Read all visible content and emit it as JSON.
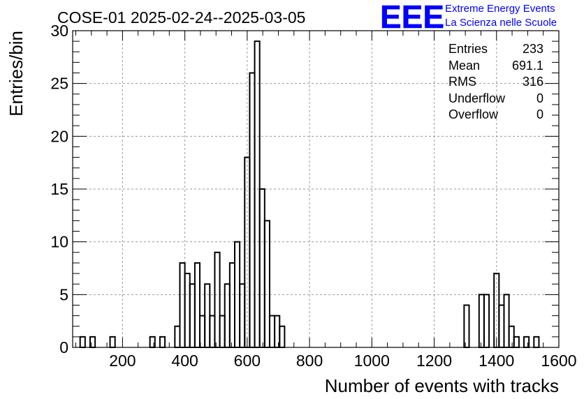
{
  "chart_data": {
    "type": "histogram",
    "title": "COSE-01 2025-02-24--2025-03-05",
    "xlabel": "Number of events with tracks",
    "ylabel": "Entries/bin",
    "xlim": [
      0,
      1600
    ],
    "ylim": [
      0,
      30
    ],
    "xticks": [
      "200",
      "400",
      "600",
      "800",
      "1000",
      "1200",
      "1400",
      "1600"
    ],
    "yticks": [
      "0",
      "5",
      "10",
      "15",
      "20",
      "25",
      "30"
    ],
    "grid": true,
    "bin_width": 16,
    "bins": [
      [
        64,
        1
      ],
      [
        96,
        1
      ],
      [
        160,
        1
      ],
      [
        288,
        1
      ],
      [
        320,
        1
      ],
      [
        368,
        2
      ],
      [
        384,
        8
      ],
      [
        400,
        7
      ],
      [
        416,
        6
      ],
      [
        432,
        8
      ],
      [
        448,
        3
      ],
      [
        464,
        6
      ],
      [
        480,
        3
      ],
      [
        496,
        9
      ],
      [
        512,
        3
      ],
      [
        528,
        6
      ],
      [
        544,
        8
      ],
      [
        560,
        10
      ],
      [
        576,
        6
      ],
      [
        592,
        18
      ],
      [
        608,
        26
      ],
      [
        624,
        29
      ],
      [
        640,
        15
      ],
      [
        656,
        12
      ],
      [
        672,
        3
      ],
      [
        688,
        3
      ],
      [
        704,
        2
      ],
      [
        1296,
        4
      ],
      [
        1344,
        5
      ],
      [
        1360,
        5
      ],
      [
        1392,
        7
      ],
      [
        1408,
        4
      ],
      [
        1424,
        5
      ],
      [
        1440,
        2
      ],
      [
        1456,
        1
      ],
      [
        1488,
        1
      ],
      [
        1520,
        1
      ]
    ]
  },
  "stats": {
    "rows": [
      {
        "label": "Entries",
        "value": "233"
      },
      {
        "label": "Mean",
        "value": "691.1"
      },
      {
        "label": "RMS",
        "value": "316"
      },
      {
        "label": "Underflow",
        "value": "0"
      },
      {
        "label": "Overflow",
        "value": "0"
      }
    ]
  },
  "logo": {
    "mark": "EEE",
    "line1": "Extreme Energy Events",
    "line2": "La Scienza nelle Scuole",
    "color": "#0000ff"
  }
}
